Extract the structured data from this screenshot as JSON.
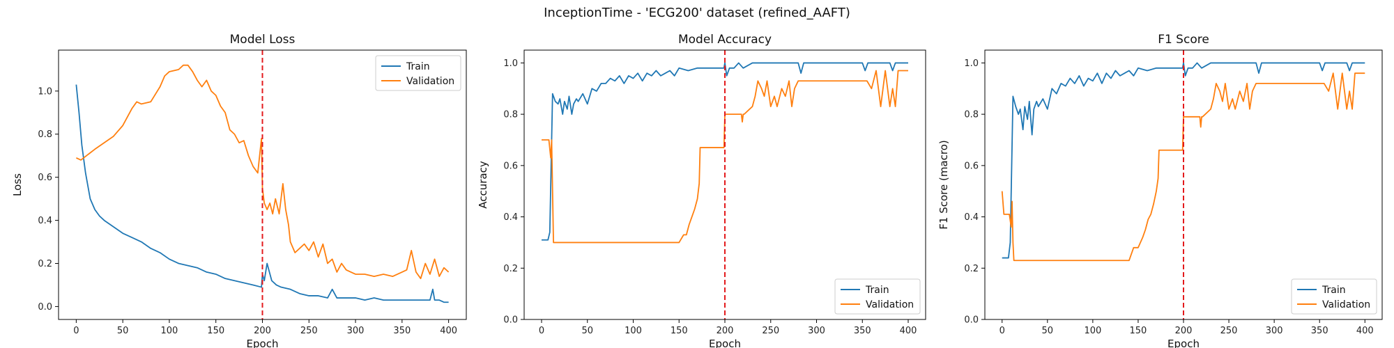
{
  "figure": {
    "suptitle": "InceptionTime - 'ECG200' dataset (refined_AAFT)"
  },
  "colors": {
    "train": "#1f77b4",
    "validation": "#ff7f0e",
    "marker": "#e31a1c"
  },
  "chart_data": [
    {
      "type": "line",
      "title": "Model Loss",
      "xlabel": "Epoch",
      "ylabel": "Loss",
      "xlim": [
        -19,
        419
      ],
      "ylim": [
        -0.06,
        1.19
      ],
      "xticks": [
        0,
        50,
        100,
        150,
        200,
        250,
        300,
        350,
        400
      ],
      "yticks": [
        0.0,
        0.2,
        0.4,
        0.6,
        0.8,
        1.0
      ],
      "ytick_format": 1,
      "grid": false,
      "legend": "upper right",
      "vline_x": 200,
      "series": [
        {
          "name": "Train",
          "x": [
            0,
            3,
            6,
            10,
            15,
            20,
            25,
            30,
            40,
            50,
            60,
            70,
            80,
            90,
            100,
            110,
            120,
            130,
            140,
            150,
            160,
            170,
            180,
            190,
            199,
            200,
            202,
            205,
            210,
            215,
            220,
            230,
            240,
            250,
            260,
            270,
            275,
            280,
            290,
            300,
            310,
            320,
            330,
            340,
            350,
            360,
            370,
            380,
            383,
            385,
            390,
            395,
            400
          ],
          "y": [
            1.03,
            0.9,
            0.75,
            0.62,
            0.5,
            0.45,
            0.42,
            0.4,
            0.37,
            0.34,
            0.32,
            0.3,
            0.27,
            0.25,
            0.22,
            0.2,
            0.19,
            0.18,
            0.16,
            0.15,
            0.13,
            0.12,
            0.11,
            0.1,
            0.09,
            0.15,
            0.12,
            0.2,
            0.12,
            0.1,
            0.09,
            0.08,
            0.06,
            0.05,
            0.05,
            0.04,
            0.08,
            0.04,
            0.04,
            0.04,
            0.03,
            0.04,
            0.03,
            0.03,
            0.03,
            0.03,
            0.03,
            0.03,
            0.08,
            0.03,
            0.03,
            0.02,
            0.02
          ]
        },
        {
          "name": "Validation",
          "x": [
            0,
            5,
            20,
            40,
            50,
            60,
            65,
            70,
            80,
            90,
            95,
            100,
            110,
            115,
            120,
            125,
            130,
            135,
            140,
            145,
            150,
            155,
            160,
            165,
            170,
            175,
            180,
            185,
            190,
            195,
            199,
            200,
            202,
            205,
            208,
            211,
            214,
            218,
            222,
            225,
            228,
            230,
            235,
            240,
            245,
            250,
            255,
            260,
            265,
            270,
            275,
            280,
            285,
            290,
            300,
            310,
            320,
            330,
            340,
            350,
            355,
            360,
            365,
            370,
            375,
            380,
            385,
            390,
            395,
            400
          ],
          "y": [
            0.69,
            0.68,
            0.73,
            0.79,
            0.84,
            0.92,
            0.95,
            0.94,
            0.95,
            1.02,
            1.07,
            1.09,
            1.1,
            1.12,
            1.12,
            1.09,
            1.05,
            1.02,
            1.05,
            1.0,
            0.98,
            0.93,
            0.9,
            0.82,
            0.8,
            0.76,
            0.77,
            0.7,
            0.65,
            0.62,
            0.78,
            0.55,
            0.48,
            0.45,
            0.48,
            0.43,
            0.5,
            0.43,
            0.57,
            0.45,
            0.38,
            0.3,
            0.25,
            0.27,
            0.29,
            0.26,
            0.3,
            0.23,
            0.29,
            0.2,
            0.22,
            0.16,
            0.2,
            0.17,
            0.15,
            0.15,
            0.14,
            0.15,
            0.14,
            0.16,
            0.17,
            0.26,
            0.16,
            0.13,
            0.2,
            0.15,
            0.22,
            0.14,
            0.18,
            0.16
          ]
        }
      ]
    },
    {
      "type": "line",
      "title": "Model Accuracy",
      "xlabel": "Epoch",
      "ylabel": "Accuracy",
      "xlim": [
        -19,
        419
      ],
      "ylim": [
        0.0,
        1.05
      ],
      "xticks": [
        0,
        50,
        100,
        150,
        200,
        250,
        300,
        350,
        400
      ],
      "yticks": [
        0.0,
        0.2,
        0.4,
        0.6,
        0.8,
        1.0
      ],
      "ytick_format": 1,
      "grid": false,
      "legend": "lower right",
      "vline_x": 200,
      "series": [
        {
          "name": "Train",
          "x": [
            0,
            7,
            9,
            12,
            15,
            18,
            20,
            23,
            25,
            28,
            30,
            33,
            35,
            38,
            40,
            45,
            50,
            55,
            60,
            65,
            70,
            75,
            80,
            85,
            90,
            95,
            100,
            105,
            110,
            115,
            120,
            125,
            130,
            135,
            140,
            145,
            150,
            160,
            170,
            180,
            190,
            199,
            200,
            202,
            205,
            210,
            215,
            220,
            230,
            240,
            250,
            260,
            270,
            280,
            283,
            286,
            290,
            300,
            320,
            340,
            350,
            353,
            356,
            360,
            380,
            383,
            386,
            400
          ],
          "y": [
            0.31,
            0.31,
            0.34,
            0.88,
            0.85,
            0.84,
            0.86,
            0.8,
            0.85,
            0.82,
            0.87,
            0.8,
            0.84,
            0.86,
            0.85,
            0.88,
            0.84,
            0.9,
            0.89,
            0.92,
            0.92,
            0.94,
            0.93,
            0.95,
            0.92,
            0.95,
            0.94,
            0.96,
            0.93,
            0.96,
            0.95,
            0.97,
            0.95,
            0.96,
            0.97,
            0.95,
            0.98,
            0.97,
            0.98,
            0.98,
            0.98,
            0.98,
            1.0,
            0.95,
            0.98,
            0.98,
            1.0,
            0.98,
            1.0,
            1.0,
            1.0,
            1.0,
            1.0,
            1.0,
            0.96,
            1.0,
            1.0,
            1.0,
            1.0,
            1.0,
            1.0,
            0.97,
            1.0,
            1.0,
            1.0,
            0.97,
            1.0,
            1.0
          ]
        },
        {
          "name": "Validation",
          "x": [
            0,
            5,
            8,
            10,
            11,
            12,
            13,
            14,
            16,
            140,
            150,
            155,
            158,
            161,
            164,
            167,
            170,
            172,
            173,
            199,
            200,
            210,
            218,
            219,
            220,
            221,
            230,
            233,
            236,
            240,
            243,
            246,
            250,
            254,
            257,
            262,
            266,
            270,
            273,
            276,
            280,
            290,
            300,
            310,
            320,
            340,
            355,
            360,
            365,
            370,
            375,
            380,
            383,
            386,
            389,
            391,
            392,
            400
          ],
          "y": [
            0.7,
            0.7,
            0.7,
            0.63,
            0.7,
            0.5,
            0.3,
            0.3,
            0.3,
            0.3,
            0.3,
            0.33,
            0.33,
            0.37,
            0.4,
            0.43,
            0.47,
            0.53,
            0.67,
            0.67,
            0.8,
            0.8,
            0.8,
            0.77,
            0.8,
            0.8,
            0.83,
            0.87,
            0.93,
            0.9,
            0.87,
            0.93,
            0.83,
            0.87,
            0.83,
            0.9,
            0.87,
            0.93,
            0.83,
            0.9,
            0.93,
            0.93,
            0.93,
            0.93,
            0.93,
            0.93,
            0.93,
            0.9,
            0.97,
            0.83,
            0.97,
            0.83,
            0.9,
            0.83,
            0.97,
            0.97,
            0.97,
            0.97
          ]
        }
      ]
    },
    {
      "type": "line",
      "title": "F1 Score",
      "xlabel": "Epoch",
      "ylabel": "F1 Score (macro)",
      "xlim": [
        -19,
        419
      ],
      "ylim": [
        0.0,
        1.05
      ],
      "xticks": [
        0,
        50,
        100,
        150,
        200,
        250,
        300,
        350,
        400
      ],
      "yticks": [
        0.0,
        0.2,
        0.4,
        0.6,
        0.8,
        1.0
      ],
      "ytick_format": 1,
      "grid": false,
      "legend": "lower right",
      "vline_x": 200,
      "series": [
        {
          "name": "Train",
          "x": [
            0,
            7,
            9,
            12,
            15,
            18,
            20,
            23,
            25,
            28,
            30,
            33,
            35,
            38,
            40,
            45,
            50,
            55,
            60,
            65,
            70,
            75,
            80,
            85,
            90,
            95,
            100,
            105,
            110,
            115,
            120,
            125,
            130,
            135,
            140,
            145,
            150,
            160,
            170,
            180,
            190,
            199,
            200,
            202,
            205,
            210,
            215,
            220,
            230,
            240,
            250,
            260,
            270,
            280,
            283,
            286,
            290,
            300,
            320,
            340,
            350,
            353,
            356,
            360,
            380,
            383,
            386,
            400
          ],
          "y": [
            0.24,
            0.24,
            0.3,
            0.87,
            0.83,
            0.8,
            0.82,
            0.74,
            0.83,
            0.78,
            0.85,
            0.72,
            0.82,
            0.85,
            0.83,
            0.86,
            0.82,
            0.9,
            0.88,
            0.92,
            0.91,
            0.94,
            0.92,
            0.95,
            0.91,
            0.94,
            0.93,
            0.96,
            0.92,
            0.96,
            0.94,
            0.97,
            0.95,
            0.96,
            0.97,
            0.95,
            0.98,
            0.97,
            0.98,
            0.98,
            0.98,
            0.98,
            1.0,
            0.95,
            0.98,
            0.98,
            1.0,
            0.98,
            1.0,
            1.0,
            1.0,
            1.0,
            1.0,
            1.0,
            0.96,
            1.0,
            1.0,
            1.0,
            1.0,
            1.0,
            1.0,
            0.97,
            1.0,
            1.0,
            1.0,
            0.97,
            1.0,
            1.0
          ]
        },
        {
          "name": "Validation",
          "x": [
            0,
            2,
            5,
            8,
            10,
            11,
            12,
            13,
            14,
            16,
            140,
            145,
            150,
            155,
            158,
            161,
            164,
            167,
            170,
            172,
            173,
            199,
            200,
            210,
            218,
            219,
            220,
            221,
            230,
            233,
            236,
            240,
            243,
            246,
            250,
            254,
            257,
            262,
            266,
            270,
            273,
            276,
            280,
            290,
            300,
            310,
            320,
            340,
            355,
            360,
            365,
            370,
            375,
            380,
            383,
            386,
            389,
            391,
            392,
            400
          ],
          "y": [
            0.5,
            0.41,
            0.41,
            0.41,
            0.36,
            0.46,
            0.3,
            0.23,
            0.23,
            0.23,
            0.23,
            0.28,
            0.28,
            0.32,
            0.35,
            0.39,
            0.41,
            0.45,
            0.5,
            0.55,
            0.66,
            0.66,
            0.79,
            0.79,
            0.79,
            0.75,
            0.79,
            0.79,
            0.82,
            0.86,
            0.92,
            0.89,
            0.85,
            0.92,
            0.82,
            0.86,
            0.82,
            0.89,
            0.85,
            0.92,
            0.82,
            0.89,
            0.92,
            0.92,
            0.92,
            0.92,
            0.92,
            0.92,
            0.92,
            0.89,
            0.96,
            0.82,
            0.96,
            0.82,
            0.89,
            0.82,
            0.96,
            0.96,
            0.96,
            0.96
          ]
        }
      ]
    }
  ]
}
